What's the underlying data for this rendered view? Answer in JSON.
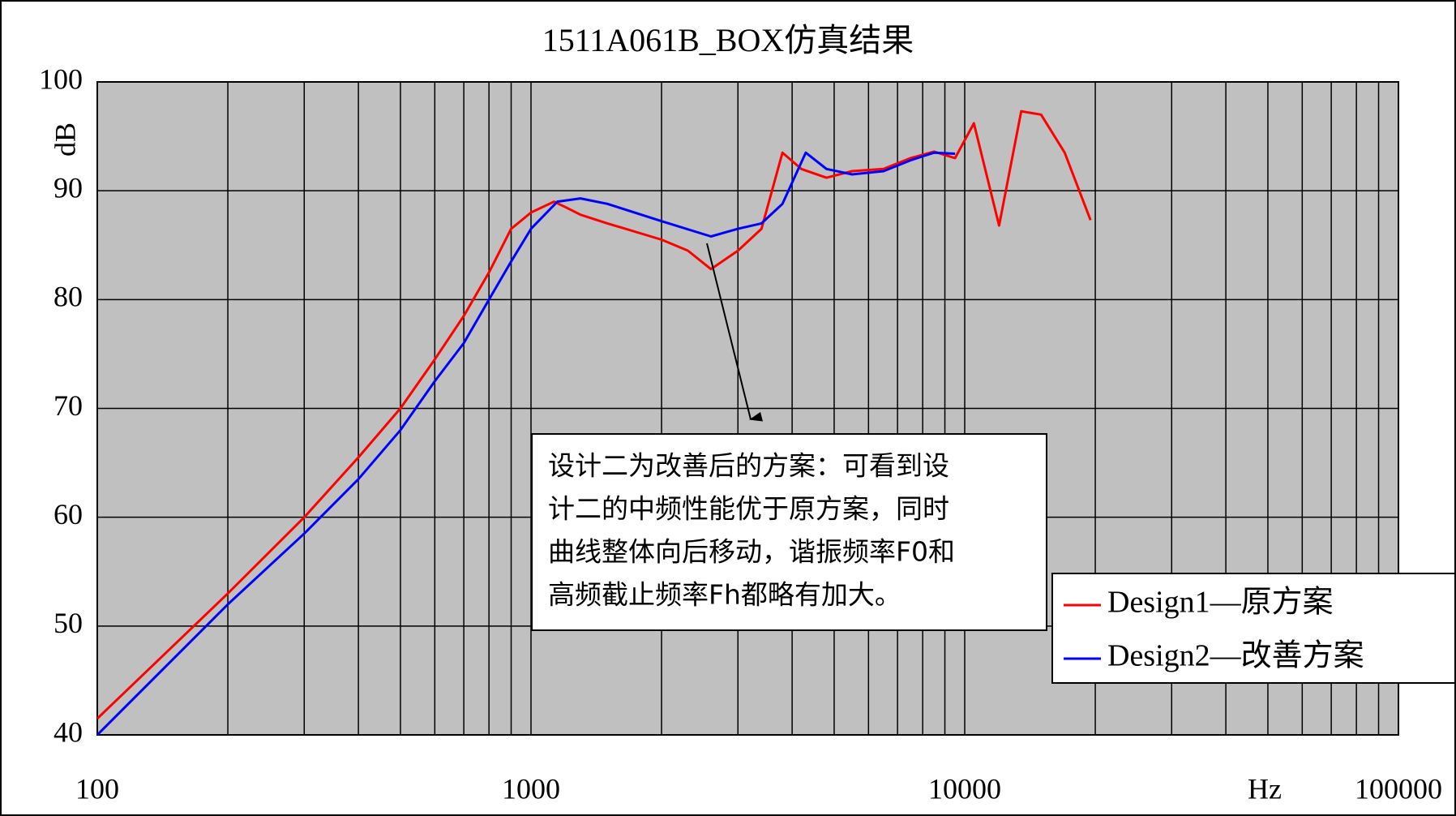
{
  "chart_data": {
    "type": "line",
    "title": "1511A061B_BOX仿真结果",
    "y_label": "dB",
    "x_label": "Hz",
    "log_x": true,
    "grid": true,
    "xlim": [
      100,
      100000
    ],
    "xticks": [
      100,
      1000,
      10000,
      100000
    ],
    "xminor_ticks": [
      200,
      300,
      400,
      500,
      600,
      700,
      800,
      900,
      2000,
      3000,
      4000,
      5000,
      6000,
      7000,
      8000,
      9000,
      20000,
      30000,
      40000,
      50000,
      60000,
      70000,
      80000,
      90000
    ],
    "ylim": [
      40,
      100
    ],
    "yticks": [
      40,
      50,
      60,
      70,
      80,
      90,
      100
    ],
    "legend": "lower right",
    "annotation": [
      "设计二为改善后的方案：可看到设",
      "计二的中频性能优于原方案，同时",
      "曲线整体向后移动，谐振频率F0和",
      "高频截止频率Fh都略有加大。"
    ],
    "series": [
      {
        "name": "Design1—原方案",
        "color": "#ff0000",
        "x": [
          100,
          200,
          300,
          400,
          500,
          600,
          700,
          800,
          900,
          1000,
          1130,
          1200,
          1300,
          1500,
          2000,
          2300,
          2600,
          3000,
          3400,
          3800,
          4200,
          4800,
          5500,
          6500,
          7500,
          8500,
          9500,
          10500,
          12000,
          13500,
          15000,
          17000,
          19500
        ],
        "values": [
          41.5,
          53,
          60,
          65.5,
          70,
          74.5,
          78.5,
          82.5,
          86.5,
          88,
          89,
          88.5,
          87.8,
          87,
          85.5,
          84.5,
          82.8,
          84.5,
          86.5,
          93.5,
          92,
          91.2,
          91.8,
          92,
          93,
          93.6,
          93,
          96.2,
          86.8,
          97.3,
          97,
          93.5,
          87.3
        ]
      },
      {
        "name": "Design2—改善方案",
        "color": "#0000ff",
        "x": [
          100,
          200,
          300,
          400,
          500,
          600,
          700,
          800,
          900,
          1000,
          1150,
          1300,
          1500,
          2000,
          2600,
          3000,
          3400,
          3800,
          4300,
          4800,
          5500,
          6500,
          7500,
          8500,
          9500
        ],
        "values": [
          40,
          52,
          58.5,
          63.5,
          68,
          72.5,
          76,
          80,
          83.5,
          86.5,
          89,
          89.3,
          88.8,
          87.2,
          85.8,
          86.5,
          87,
          88.8,
          93.5,
          92,
          91.5,
          91.8,
          92.8,
          93.5,
          93.4
        ]
      }
    ]
  }
}
